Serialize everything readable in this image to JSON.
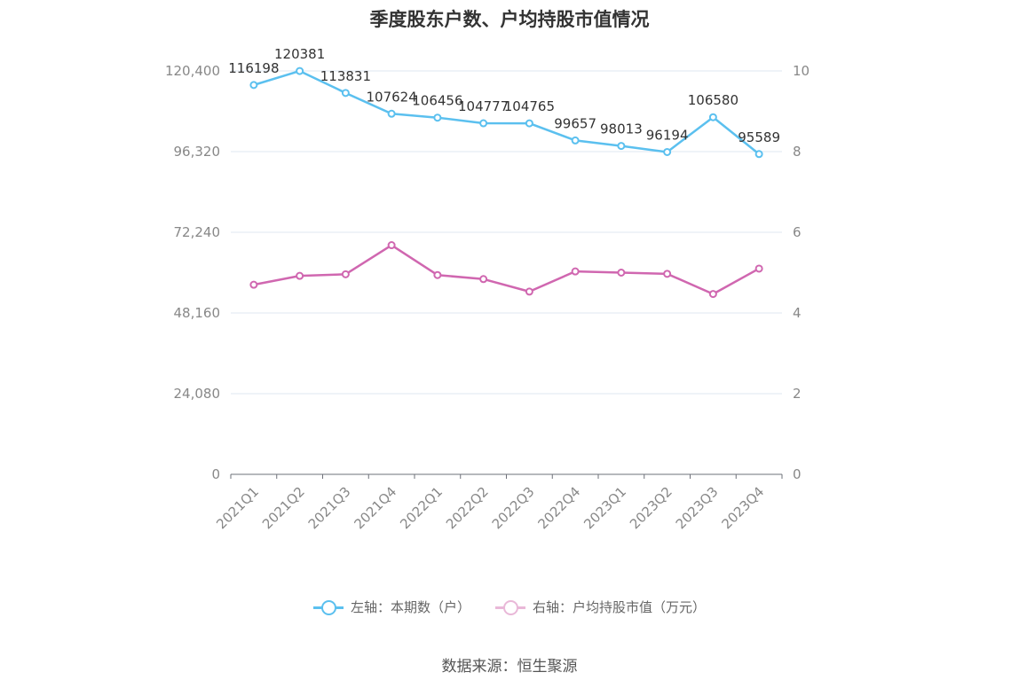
{
  "chart_data": {
    "type": "line",
    "title": "季度股东户数、户均持股市值情况",
    "categories": [
      "2021Q1",
      "2021Q2",
      "2021Q3",
      "2021Q4",
      "2022Q1",
      "2022Q2",
      "2022Q3",
      "2022Q4",
      "2023Q1",
      "2023Q2",
      "2023Q3",
      "2023Q4"
    ],
    "left_axis": {
      "ticks": [
        "0",
        "24,080",
        "48,160",
        "72,240",
        "96,320",
        "120,400"
      ],
      "ylim": [
        0,
        120400
      ]
    },
    "right_axis": {
      "ticks": [
        "0",
        "2",
        "4",
        "6",
        "8",
        "10"
      ],
      "ylim": [
        0,
        10
      ]
    },
    "grid": true,
    "legend_position": "bottom",
    "series": [
      {
        "name": "左轴：本期数（户）",
        "axis": "left",
        "color": "#5bc0ef",
        "values": [
          116198,
          120381,
          113831,
          107624,
          106456,
          104777,
          104765,
          99657,
          98013,
          96194,
          106580,
          95589
        ],
        "labels": [
          "116198",
          "120381",
          "113831",
          "107624",
          "106456",
          "104777",
          "104765",
          "99657",
          "98013",
          "96194",
          "106580",
          "95589"
        ]
      },
      {
        "name": "右轴：户均持股市值（万元）",
        "axis": "right",
        "color": "#d067b0",
        "values": [
          4.7,
          4.92,
          4.96,
          5.68,
          4.94,
          4.84,
          4.53,
          5.03,
          5.0,
          4.97,
          4.47,
          5.1
        ]
      }
    ]
  },
  "source": "数据来源：恒生聚源"
}
